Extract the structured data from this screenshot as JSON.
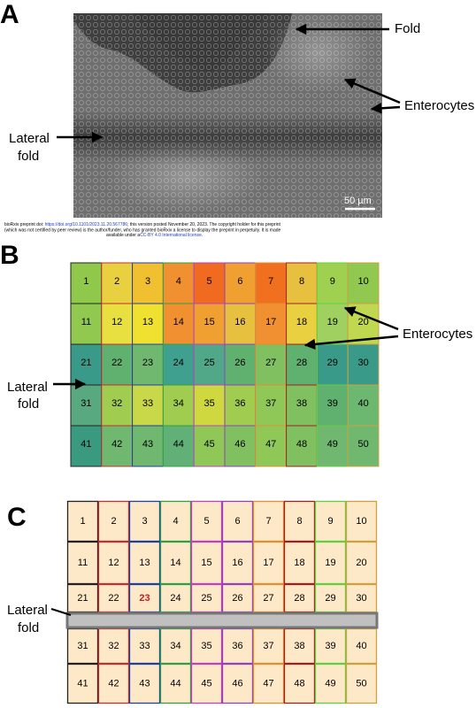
{
  "panel_a": {
    "label": "A",
    "fold": "Fold",
    "enterocytes": "Enterocytes",
    "lateral_fold": [
      "Lateral",
      "fold"
    ],
    "scale_bar": "50 µm"
  },
  "preprint_notice": {
    "line1": [
      "bioRxiv preprint doi: ",
      "https://doi.org/10.1101/2023.11.20.567786",
      "; this version posted November 20, 2023. The copyright holder for this preprint"
    ],
    "line2": "(which was not certified by peer review) is the author/funder, who has granted bioRxiv a license to display the preprint in perpetuity. It is made",
    "line3": [
      "available under a",
      "CC-BY 4.0 International license",
      "."
    ]
  },
  "panel_b": {
    "label": "B",
    "cells": [
      1,
      2,
      3,
      4,
      5,
      6,
      7,
      8,
      9,
      10,
      11,
      12,
      13,
      14,
      15,
      16,
      17,
      18,
      19,
      20,
      21,
      22,
      23,
      24,
      25,
      26,
      27,
      28,
      29,
      30,
      31,
      32,
      33,
      34,
      35,
      36,
      37,
      38,
      39,
      40,
      41,
      42,
      43,
      44,
      45,
      46,
      47,
      48,
      49,
      50
    ],
    "enterocytes": "Enterocytes",
    "lateral_fold": [
      "Lateral",
      "fold"
    ]
  },
  "panel_c": {
    "label": "C",
    "cells": [
      1,
      2,
      3,
      4,
      5,
      6,
      7,
      8,
      9,
      10,
      11,
      12,
      13,
      14,
      15,
      16,
      17,
      18,
      19,
      20,
      21,
      22,
      23,
      24,
      25,
      26,
      27,
      28,
      29,
      30,
      31,
      32,
      33,
      34,
      35,
      36,
      37,
      38,
      39,
      40,
      41,
      42,
      43,
      44,
      45,
      46,
      47,
      48,
      49,
      50
    ],
    "lateral_fold": [
      "Lateral",
      "fold"
    ]
  }
}
